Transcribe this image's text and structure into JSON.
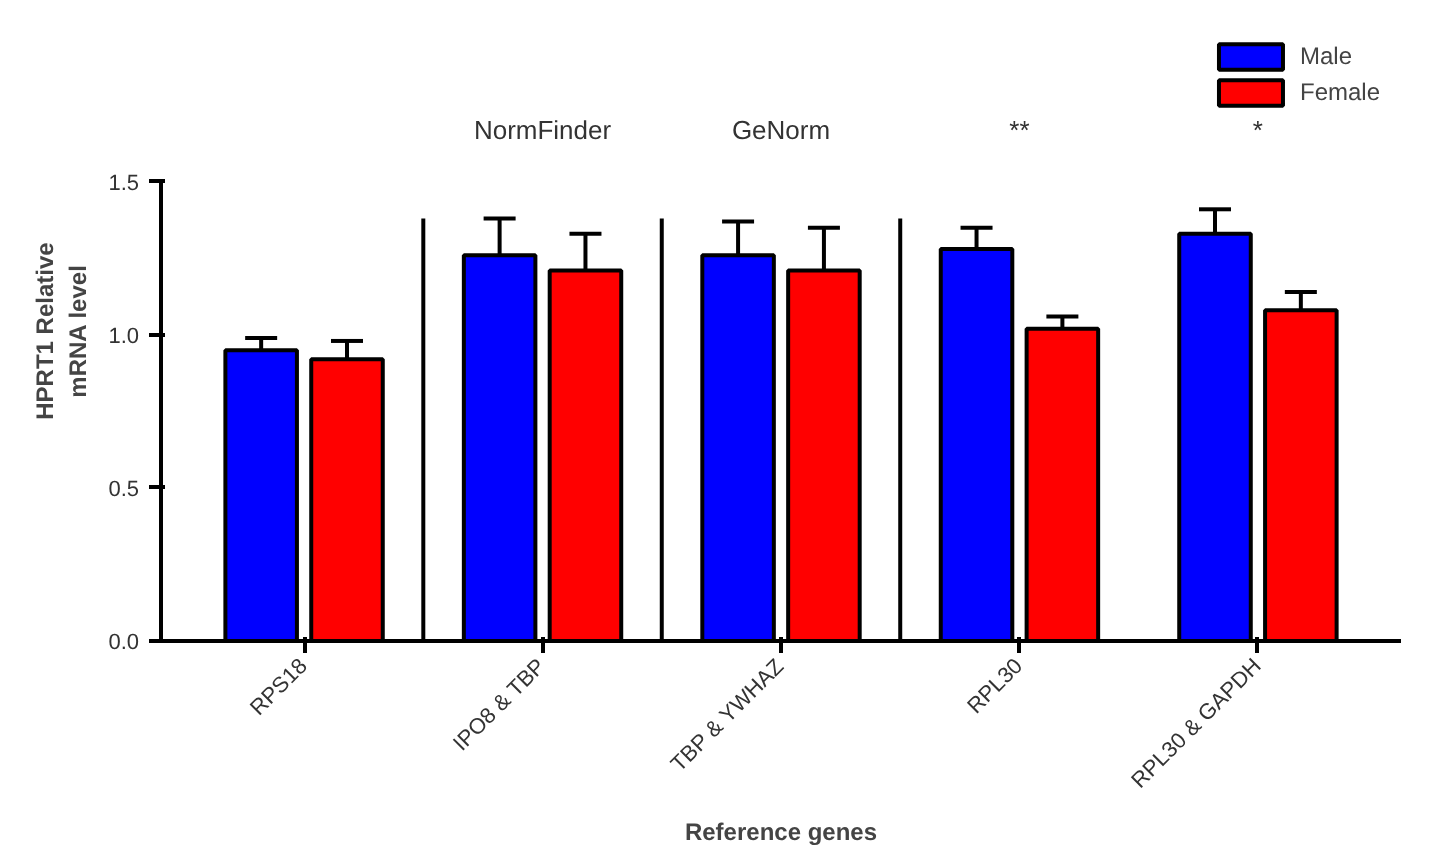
{
  "chart_data": {
    "type": "bar",
    "xlabel": "Reference genes",
    "ylabel": "HPRT1 Relative\nmRNA level",
    "categories": [
      "RPS18",
      "IPO8 & TBP",
      "TBP & YWHAZ",
      "RPL30",
      "RPL30 & GAPDH"
    ],
    "series": [
      {
        "name": "Male",
        "color": "#0000ff",
        "values": [
          0.95,
          1.26,
          1.26,
          1.28,
          1.33
        ],
        "errors": [
          0.04,
          0.12,
          0.11,
          0.07,
          0.08
        ]
      },
      {
        "name": "Female",
        "color": "#ff0000",
        "values": [
          0.92,
          1.21,
          1.21,
          1.02,
          1.08
        ],
        "errors": [
          0.06,
          0.12,
          0.14,
          0.04,
          0.06
        ]
      }
    ],
    "ylim": [
      0,
      1.5
    ],
    "yticks": [
      {
        "value": 0,
        "label": "0.0"
      },
      {
        "value": 0.5,
        "label": "0.5"
      },
      {
        "value": 1.0,
        "label": "1.0"
      },
      {
        "value": 1.5,
        "label": "1.5"
      }
    ],
    "annotations": [
      "NormFinder",
      "GeNorm",
      "**",
      "*"
    ],
    "grid": false,
    "legend": "top right"
  }
}
